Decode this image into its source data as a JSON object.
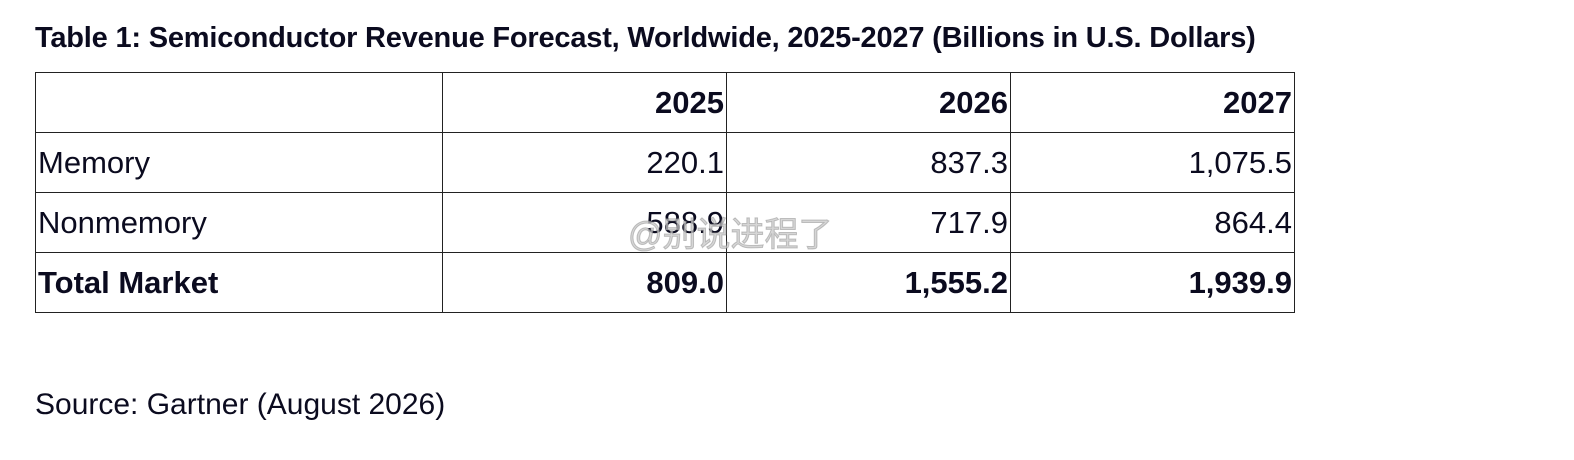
{
  "title": "Table 1: Semiconductor Revenue Forecast, Worldwide, 2025-2027 (Billions in U.S. Dollars)",
  "table": {
    "header": [
      "",
      "2025",
      "2026",
      "2027"
    ],
    "rows": [
      [
        "Memory",
        "220.1",
        "837.3",
        "1,075.5"
      ],
      [
        "Nonmemory",
        "588.9",
        "717.9",
        "864.4"
      ],
      [
        "Total Market",
        "809.0",
        "1,555.2",
        "1,939.9"
      ]
    ]
  },
  "source": "Source: Gartner (August 2026)",
  "watermark": "@别说进程了"
}
